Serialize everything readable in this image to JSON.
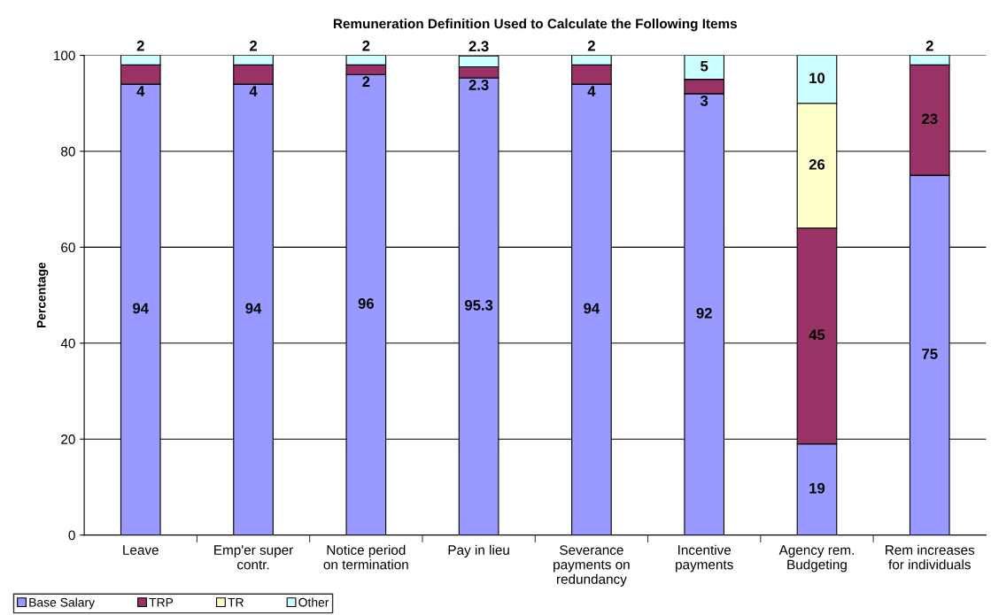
{
  "chart_data": {
    "type": "bar",
    "stacked": true,
    "title": "Remuneration Definition Used to Calculate the Following Items",
    "ylabel": "Percentage",
    "categories": [
      "Leave",
      "Emp'er super\ncontr.",
      "Notice period\non termination",
      "Pay in lieu",
      "Severance\npayments on\nredundancy",
      "Incentive\npayments",
      "Agency rem.\nBudgeting",
      "Rem increases\nfor individuals"
    ],
    "series": [
      {
        "name": "Base Salary",
        "color": "#9999ff",
        "values": [
          94,
          94,
          96,
          95.3,
          94,
          92,
          19,
          75
        ]
      },
      {
        "name": "TRP",
        "color": "#993366",
        "values": [
          4,
          4,
          2,
          2.3,
          4,
          3,
          45,
          23
        ]
      },
      {
        "name": "TR",
        "color": "#ffffcc",
        "values": [
          null,
          null,
          null,
          null,
          null,
          null,
          26,
          null
        ]
      },
      {
        "name": "Other",
        "color": "#ccffff",
        "values": [
          2,
          2,
          2,
          2.3,
          2,
          5,
          10,
          2
        ]
      }
    ],
    "ylim": [
      0,
      100
    ],
    "yticks": [
      0,
      20,
      40,
      60,
      80,
      100
    ],
    "grid": "y",
    "legend": "bottom left",
    "data_labels": true
  }
}
